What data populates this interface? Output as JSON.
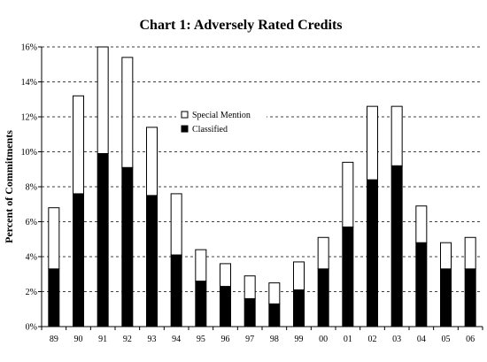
{
  "chart_data": {
    "type": "bar",
    "stacked": true,
    "title": "Chart 1: Adversely Rated Credits",
    "xlabel": "",
    "ylabel": "Percent of Commitments",
    "categories": [
      "89",
      "90",
      "91",
      "92",
      "93",
      "94",
      "95",
      "96",
      "97",
      "98",
      "99",
      "00",
      "01",
      "02",
      "03",
      "04",
      "05",
      "06"
    ],
    "y_tick_labels": [
      "0%",
      "2%",
      "4%",
      "6%",
      "8%",
      "10%",
      "12%",
      "14%",
      "16%"
    ],
    "ylim": [
      0,
      16
    ],
    "grid": "horizontal dashed",
    "legend_position": "upper-middle",
    "series": [
      {
        "name": "Classified",
        "color": "#000000",
        "values": [
          3.3,
          7.6,
          9.9,
          9.1,
          7.5,
          4.1,
          2.6,
          2.3,
          1.6,
          1.3,
          2.1,
          3.3,
          5.7,
          8.4,
          9.2,
          4.8,
          3.3,
          3.3
        ]
      },
      {
        "name": "Special Mention",
        "color": "#ffffff",
        "values": [
          3.5,
          5.6,
          6.1,
          6.3,
          3.9,
          3.5,
          1.8,
          1.3,
          1.3,
          1.2,
          1.6,
          1.8,
          3.7,
          4.2,
          3.4,
          2.1,
          1.5,
          1.8
        ]
      }
    ]
  }
}
